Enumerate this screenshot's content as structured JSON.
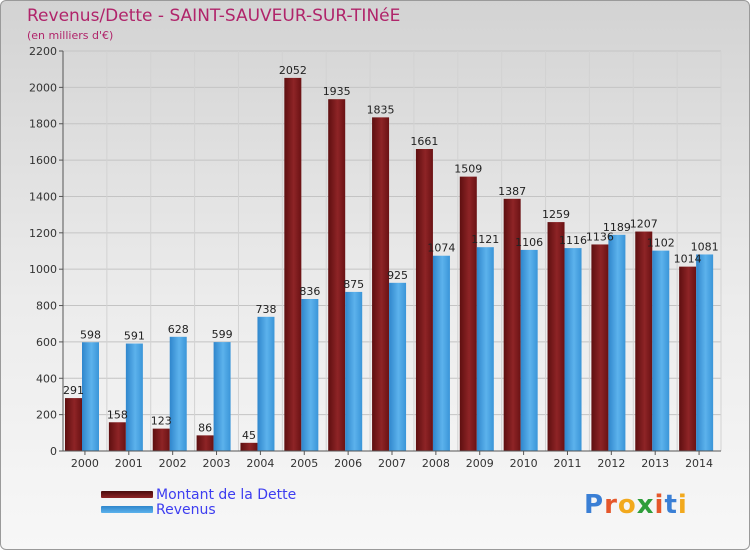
{
  "chart_data": {
    "type": "bar",
    "title": "Revenus/Dette - SAINT-SAUVEUR-SUR-TINéE",
    "ylabel": "(en milliers d'€)",
    "xlabel": "",
    "ylim": [
      0,
      2200
    ],
    "yticks": [
      0,
      200,
      400,
      600,
      800,
      1000,
      1200,
      1400,
      1600,
      1800,
      2000,
      2200
    ],
    "grid": true,
    "categories": [
      "2000",
      "2001",
      "2002",
      "2003",
      "2004",
      "2005",
      "2006",
      "2007",
      "2008",
      "2009",
      "2010",
      "2011",
      "2012",
      "2013",
      "2014"
    ],
    "series": [
      {
        "name": "Montant de la Dette",
        "color": "#7a1618",
        "values": [
          291,
          158,
          123,
          86,
          45,
          2052,
          1935,
          1835,
          1661,
          1509,
          1387,
          1259,
          1136,
          1207,
          1014
        ],
        "labels": [
          "291",
          "158",
          "123",
          "86",
          "45",
          "2052",
          "1935",
          "1835",
          "1661",
          "1509",
          "1387",
          "1259",
          "1136",
          "1207",
          "1014"
        ]
      },
      {
        "name": "Revenus",
        "color": "#3d9de0",
        "values": [
          598,
          591,
          628,
          599,
          738,
          836,
          875,
          925,
          1074,
          1121,
          1106,
          1116,
          1189,
          1102,
          1081
        ],
        "labels": [
          "598",
          "591",
          "628",
          "599",
          "738",
          "836",
          "875",
          "925",
          "1074",
          "1121",
          "1106",
          "1116",
          "1189",
          "1102",
          "1081"
        ]
      }
    ],
    "legend": {
      "position": "bottom-left",
      "items": [
        {
          "label": "Montant de la Dette",
          "color": "#7a1618"
        },
        {
          "label": "Revenus",
          "color": "#3d9de0"
        }
      ]
    }
  },
  "logo": {
    "text": "Proxiti",
    "colors": [
      "#3a7fd5",
      "#e5572b",
      "#f2a91d",
      "#2e9e3a",
      "#e5572b",
      "#3a7fd5",
      "#f2a91d"
    ]
  }
}
